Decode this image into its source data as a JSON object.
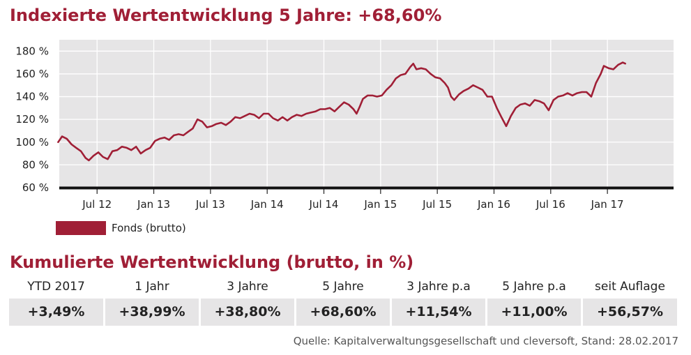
{
  "header": {
    "title": "Indexierte Wertentwicklung 5 Jahre: +68,60%"
  },
  "chart_data": {
    "type": "line",
    "title": "Indexierte Wertentwicklung 5 Jahre: +68,60%",
    "x_unit": "month",
    "x_ticks": [
      {
        "label": "Jul 12",
        "date": "2012-07"
      },
      {
        "label": "Jan 13",
        "date": "2013-01"
      },
      {
        "label": "Jul 13",
        "date": "2013-07"
      },
      {
        "label": "Jan 14",
        "date": "2014-01"
      },
      {
        "label": "Jul 14",
        "date": "2014-07"
      },
      {
        "label": "Jan 15",
        "date": "2015-01"
      },
      {
        "label": "Jul 15",
        "date": "2015-07"
      },
      {
        "label": "Jan 16",
        "date": "2016-01"
      },
      {
        "label": "Jul 16",
        "date": "2016-07"
      },
      {
        "label": "Jan 17",
        "date": "2017-01"
      }
    ],
    "xlim": [
      "2012-03",
      "2017-08"
    ],
    "ylim": [
      60,
      190
    ],
    "y_ticks": [
      {
        "value": 60,
        "label": "60 %"
      },
      {
        "value": 80,
        "label": "80 %"
      },
      {
        "value": 100,
        "label": "100 %"
      },
      {
        "value": 120,
        "label": "120 %"
      },
      {
        "value": 140,
        "label": "140 %"
      },
      {
        "value": 160,
        "label": "160 %"
      },
      {
        "value": 180,
        "label": "180 %"
      }
    ],
    "grid": true,
    "legend_position": "bottom-left",
    "series": [
      {
        "name": "Fonds (brutto)",
        "color": "#a01f36",
        "points": [
          [
            "2012-02-28",
            100
          ],
          [
            "2012-03-10",
            105
          ],
          [
            "2012-03-25",
            103
          ],
          [
            "2012-04-10",
            98
          ],
          [
            "2012-04-25",
            95
          ],
          [
            "2012-05-10",
            92
          ],
          [
            "2012-05-25",
            86
          ],
          [
            "2012-06-05",
            84
          ],
          [
            "2012-06-20",
            88
          ],
          [
            "2012-07-05",
            91
          ],
          [
            "2012-07-20",
            87
          ],
          [
            "2012-08-05",
            85
          ],
          [
            "2012-08-20",
            92
          ],
          [
            "2012-09-05",
            93
          ],
          [
            "2012-09-20",
            96
          ],
          [
            "2012-10-05",
            95
          ],
          [
            "2012-10-20",
            93
          ],
          [
            "2012-11-05",
            96
          ],
          [
            "2012-11-20",
            90
          ],
          [
            "2012-12-05",
            93
          ],
          [
            "2012-12-20",
            95
          ],
          [
            "2013-01-05",
            101
          ],
          [
            "2013-01-20",
            103
          ],
          [
            "2013-02-05",
            104
          ],
          [
            "2013-02-20",
            102
          ],
          [
            "2013-03-05",
            106
          ],
          [
            "2013-03-20",
            107
          ],
          [
            "2013-04-05",
            106
          ],
          [
            "2013-04-20",
            109
          ],
          [
            "2013-05-05",
            112
          ],
          [
            "2013-05-20",
            120
          ],
          [
            "2013-06-05",
            118
          ],
          [
            "2013-06-20",
            113
          ],
          [
            "2013-07-05",
            114
          ],
          [
            "2013-07-20",
            116
          ],
          [
            "2013-08-05",
            117
          ],
          [
            "2013-08-20",
            115
          ],
          [
            "2013-09-05",
            118
          ],
          [
            "2013-09-20",
            122
          ],
          [
            "2013-10-05",
            121
          ],
          [
            "2013-10-20",
            123
          ],
          [
            "2013-11-05",
            125
          ],
          [
            "2013-11-20",
            124
          ],
          [
            "2013-12-05",
            121
          ],
          [
            "2013-12-20",
            125
          ],
          [
            "2014-01-05",
            125
          ],
          [
            "2014-01-20",
            121
          ],
          [
            "2014-02-05",
            119
          ],
          [
            "2014-02-20",
            122
          ],
          [
            "2014-03-05",
            119
          ],
          [
            "2014-03-20",
            122
          ],
          [
            "2014-04-05",
            124
          ],
          [
            "2014-04-20",
            123
          ],
          [
            "2014-05-05",
            125
          ],
          [
            "2014-05-20",
            126
          ],
          [
            "2014-06-05",
            127
          ],
          [
            "2014-06-20",
            129
          ],
          [
            "2014-07-05",
            129
          ],
          [
            "2014-07-20",
            130
          ],
          [
            "2014-08-05",
            127
          ],
          [
            "2014-08-20",
            131
          ],
          [
            "2014-09-05",
            135
          ],
          [
            "2014-09-20",
            133
          ],
          [
            "2014-10-05",
            129
          ],
          [
            "2014-10-15",
            125
          ],
          [
            "2014-10-25",
            131
          ],
          [
            "2014-11-05",
            138
          ],
          [
            "2014-11-20",
            141
          ],
          [
            "2014-12-05",
            141
          ],
          [
            "2014-12-20",
            140
          ],
          [
            "2015-01-05",
            141
          ],
          [
            "2015-01-20",
            146
          ],
          [
            "2015-02-05",
            150
          ],
          [
            "2015-02-20",
            156
          ],
          [
            "2015-03-05",
            159
          ],
          [
            "2015-03-20",
            160
          ],
          [
            "2015-04-05",
            166
          ],
          [
            "2015-04-15",
            169
          ],
          [
            "2015-04-25",
            164
          ],
          [
            "2015-05-10",
            165
          ],
          [
            "2015-05-25",
            164
          ],
          [
            "2015-06-10",
            160
          ],
          [
            "2015-06-25",
            157
          ],
          [
            "2015-07-10",
            156
          ],
          [
            "2015-07-25",
            152
          ],
          [
            "2015-08-05",
            148
          ],
          [
            "2015-08-15",
            140
          ],
          [
            "2015-08-25",
            137
          ],
          [
            "2015-09-10",
            142
          ],
          [
            "2015-09-25",
            145
          ],
          [
            "2015-10-10",
            147
          ],
          [
            "2015-10-25",
            150
          ],
          [
            "2015-11-10",
            148
          ],
          [
            "2015-11-25",
            146
          ],
          [
            "2015-12-10",
            140
          ],
          [
            "2015-12-25",
            140
          ],
          [
            "2016-01-10",
            130
          ],
          [
            "2016-01-25",
            122
          ],
          [
            "2016-02-10",
            114
          ],
          [
            "2016-02-25",
            123
          ],
          [
            "2016-03-10",
            130
          ],
          [
            "2016-03-25",
            133
          ],
          [
            "2016-04-10",
            134
          ],
          [
            "2016-04-25",
            132
          ],
          [
            "2016-05-10",
            137
          ],
          [
            "2016-05-25",
            136
          ],
          [
            "2016-06-10",
            134
          ],
          [
            "2016-06-25",
            128
          ],
          [
            "2016-07-10",
            137
          ],
          [
            "2016-07-25",
            140
          ],
          [
            "2016-08-10",
            141
          ],
          [
            "2016-08-25",
            143
          ],
          [
            "2016-09-10",
            141
          ],
          [
            "2016-09-25",
            143
          ],
          [
            "2016-10-10",
            144
          ],
          [
            "2016-10-25",
            144
          ],
          [
            "2016-11-10",
            140
          ],
          [
            "2016-11-25",
            152
          ],
          [
            "2016-12-10",
            160
          ],
          [
            "2016-12-20",
            167
          ],
          [
            "2017-01-05",
            165
          ],
          [
            "2017-01-20",
            164
          ],
          [
            "2017-02-05",
            168
          ],
          [
            "2017-02-20",
            170
          ],
          [
            "2017-02-28",
            169
          ]
        ]
      }
    ]
  },
  "performance_section": {
    "title": "Kumulierte Wertentwicklung (brutto, in %)",
    "columns": [
      {
        "label": "YTD 2017",
        "value": "+3,49%"
      },
      {
        "label": "1 Jahr",
        "value": "+38,99%"
      },
      {
        "label": "3 Jahre",
        "value": "+38,80%"
      },
      {
        "label": "5 Jahre",
        "value": "+68,60%"
      },
      {
        "label": "3 Jahre p.a",
        "value": "+11,54%"
      },
      {
        "label": "5 Jahre p.a",
        "value": "+11,00%"
      },
      {
        "label": "seit Auflage",
        "value": "+56,57%"
      }
    ]
  },
  "footer": {
    "source": "Quelle: Kapitalverwaltungsgesellschaft und cleversoft, Stand: 28.02.2017"
  },
  "colors": {
    "accent": "#a01f36",
    "plot_bg": "#e6e5e6",
    "cell_bg": "#e6e5e6"
  }
}
